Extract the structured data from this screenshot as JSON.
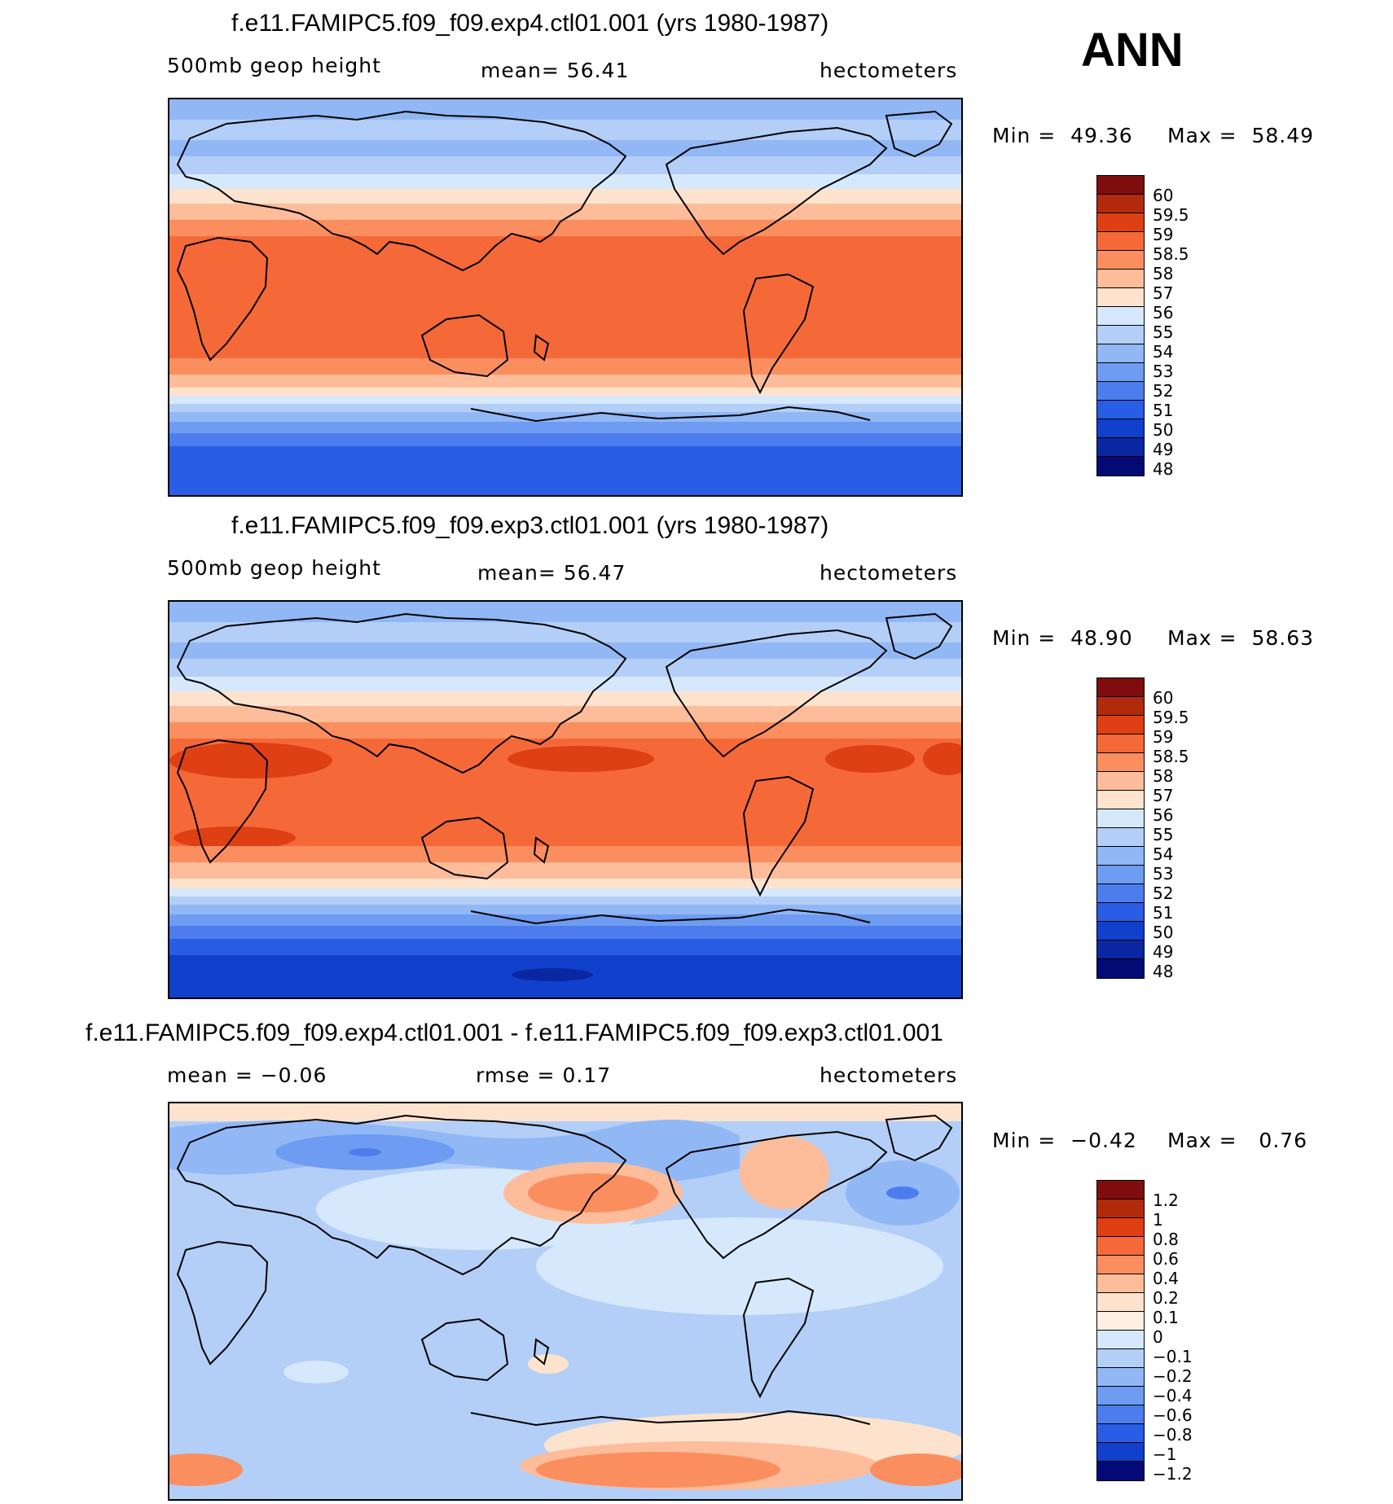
{
  "season": "ANN",
  "units": "hectometers",
  "panels": [
    {
      "title": "f.e11.FAMIPC5.f09_f09.exp4.ctl01.001 (yrs 1980-1987)",
      "variable": "500mb geop height",
      "stat_label": "mean=  56.41",
      "min_label": "Min =  49.36",
      "max_label": "Max =  58.49",
      "levels": [
        "60",
        "59.5",
        "59",
        "58.5",
        "58",
        "57",
        "56",
        "55",
        "54",
        "53",
        "52",
        "51",
        "50",
        "49",
        "48"
      ],
      "colors": [
        "#7f0d0d",
        "#b22a0c",
        "#de3f13",
        "#f56938",
        "#fb8e5f",
        "#fdbc9a",
        "#fde3cd",
        "#d6e8fb",
        "#b3cff8",
        "#92b7f5",
        "#6e9cf2",
        "#4d7ded",
        "#2a5de5",
        "#1040cc",
        "#0a27a1",
        "#040a75"
      ]
    },
    {
      "title": "f.e11.FAMIPC5.f09_f09.exp3.ctl01.001 (yrs 1980-1987)",
      "variable": "500mb geop height",
      "stat_label": "mean=  56.47",
      "min_label": "Min =  48.90",
      "max_label": "Max =  58.63",
      "levels": [
        "60",
        "59.5",
        "59",
        "58.5",
        "58",
        "57",
        "56",
        "55",
        "54",
        "53",
        "52",
        "51",
        "50",
        "49",
        "48"
      ],
      "colors": [
        "#7f0d0d",
        "#b22a0c",
        "#de3f13",
        "#f56938",
        "#fb8e5f",
        "#fdbc9a",
        "#fde3cd",
        "#d6e8fb",
        "#b3cff8",
        "#92b7f5",
        "#6e9cf2",
        "#4d7ded",
        "#2a5de5",
        "#1040cc",
        "#0a27a1",
        "#040a75"
      ]
    },
    {
      "title": "f.e11.FAMIPC5.f09_f09.exp4.ctl01.001 - f.e11.FAMIPC5.f09_f09.exp3.ctl01.001",
      "mean_label": "mean =  −0.06",
      "rmse_label": "rmse =   0.17",
      "min_label": "Min =  −0.42",
      "max_label": "Max =   0.76",
      "levels": [
        "1.2",
        "1",
        "0.8",
        "0.6",
        "0.4",
        "0.2",
        "0.1",
        "0",
        "−0.1",
        "−0.2",
        "−0.4",
        "−0.6",
        "−0.8",
        "−1",
        "−1.2"
      ],
      "colors": [
        "#7f0d0d",
        "#b22a0c",
        "#de3f13",
        "#f56938",
        "#fb8e5f",
        "#fdbc9a",
        "#fde3cd",
        "#fdf0e2",
        "#d6e8fb",
        "#b3cff8",
        "#92b7f5",
        "#6e9cf2",
        "#4d7ded",
        "#2a5de5",
        "#1040cc",
        "#040a75"
      ]
    }
  ]
}
